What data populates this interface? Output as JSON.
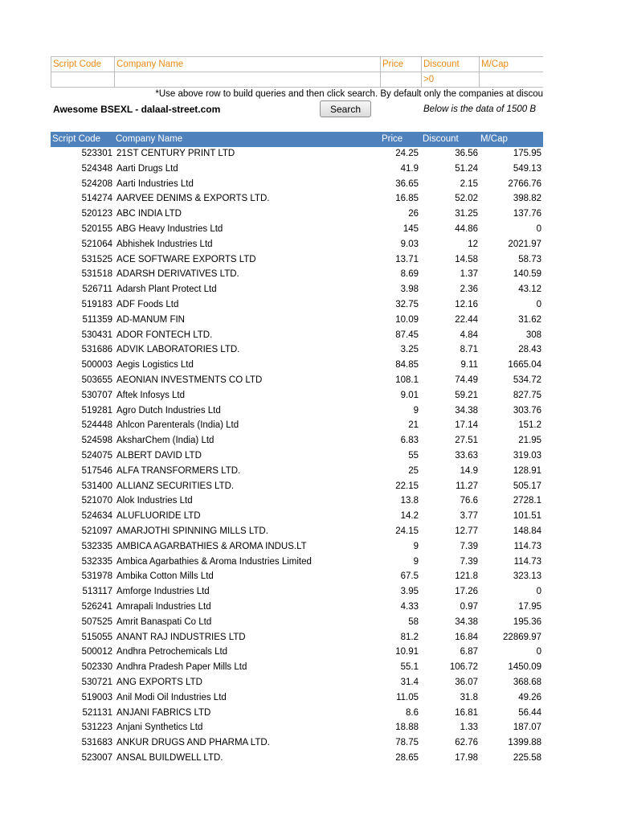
{
  "query": {
    "headers": [
      "Script Code",
      "Company Name",
      "Price",
      "Discount",
      "M/Cap"
    ],
    "discount_filter": ">0"
  },
  "note": "*Use above row to build queries and then click search. By default only the companies at discou",
  "brand": "Awesome BSEXL - dalaal-street.com",
  "search_button": "Search",
  "data_note": "Below is the data of 1500 B",
  "table": {
    "headers": [
      "Script Code",
      "Company Name",
      "Price",
      "Discount",
      "M/Cap"
    ],
    "rows": [
      [
        "523301",
        "21ST CENTURY PRINT LTD",
        "24.25",
        "36.56",
        "175.95"
      ],
      [
        "524348",
        "Aarti Drugs Ltd",
        "41.9",
        "51.24",
        "549.13"
      ],
      [
        "524208",
        "Aarti Industries Ltd",
        "36.65",
        "2.15",
        "2766.76"
      ],
      [
        "514274",
        "AARVEE DENIMS & EXPORTS LTD.",
        "16.85",
        "52.02",
        "398.82"
      ],
      [
        "520123",
        "ABC INDIA LTD",
        "26",
        "31.25",
        "137.76"
      ],
      [
        "520155",
        "ABG Heavy Industries Ltd",
        "145",
        "44.86",
        "0"
      ],
      [
        "521064",
        "Abhishek Industries Ltd",
        "9.03",
        "12",
        "2021.97"
      ],
      [
        "531525",
        "ACE SOFTWARE EXPORTS LTD",
        "13.71",
        "14.58",
        "58.73"
      ],
      [
        "531518",
        "ADARSH DERIVATIVES LTD.",
        "8.69",
        "1.37",
        "140.59"
      ],
      [
        "526711",
        "Adarsh Plant Protect Ltd",
        "3.98",
        "2.36",
        "43.12"
      ],
      [
        "519183",
        "ADF Foods Ltd",
        "32.75",
        "12.16",
        "0"
      ],
      [
        "511359",
        "AD-MANUM FIN",
        "10.09",
        "22.44",
        "31.62"
      ],
      [
        "530431",
        "ADOR FONTECH LTD.",
        "87.45",
        "4.84",
        "308"
      ],
      [
        "531686",
        "ADVIK LABORATORIES LTD.",
        "3.25",
        "8.71",
        "28.43"
      ],
      [
        "500003",
        "Aegis Logistics Ltd",
        "84.85",
        "9.11",
        "1665.04"
      ],
      [
        "503655",
        "AEONIAN INVESTMENTS CO LTD",
        "108.1",
        "74.49",
        "534.72"
      ],
      [
        "530707",
        "Aftek Infosys Ltd",
        "9.01",
        "59.21",
        "827.75"
      ],
      [
        "519281",
        "Agro Dutch Industries Ltd",
        "9",
        "34.38",
        "303.76"
      ],
      [
        "524448",
        "Ahlcon Parenterals (India) Ltd",
        "21",
        "17.14",
        "151.2"
      ],
      [
        "524598",
        "AksharChem (India) Ltd",
        "6.83",
        "27.51",
        "21.95"
      ],
      [
        "524075",
        "ALBERT DAVID LTD",
        "55",
        "33.63",
        "319.03"
      ],
      [
        "517546",
        "ALFA TRANSFORMERS LTD.",
        "25",
        "14.9",
        "128.91"
      ],
      [
        "531400",
        "ALLIANZ SECURITIES LTD.",
        "22.15",
        "11.27",
        "505.17"
      ],
      [
        "521070",
        "Alok Industries Ltd",
        "13.8",
        "76.6",
        "2728.1"
      ],
      [
        "524634",
        "ALUFLUORIDE LTD",
        "14.2",
        "3.77",
        "101.51"
      ],
      [
        "521097",
        "AMARJOTHI SPINNING MILLS LTD.",
        "24.15",
        "12.77",
        "148.84"
      ],
      [
        "532335",
        "AMBICA AGARBATHIES & AROMA INDUS.LT",
        "9",
        "7.39",
        "114.73"
      ],
      [
        "532335",
        "Ambica Agarbathies & Aroma Industries Limited",
        "9",
        "7.39",
        "114.73"
      ],
      [
        "531978",
        "Ambika Cotton Mills Ltd",
        "67.5",
        "121.8",
        "323.13"
      ],
      [
        "513117",
        "Amforge Industries Ltd",
        "3.95",
        "17.26",
        "0"
      ],
      [
        "526241",
        "Amrapali Industries Ltd",
        "4.33",
        "0.97",
        "17.95"
      ],
      [
        "507525",
        "Amrit Banaspati Co Ltd",
        "58",
        "34.38",
        "195.36"
      ],
      [
        "515055",
        "ANANT RAJ INDUSTRIES LTD",
        "81.2",
        "16.84",
        "22869.97"
      ],
      [
        "500012",
        "Andhra Petrochemicals Ltd",
        "10.91",
        "6.87",
        "0"
      ],
      [
        "502330",
        "Andhra Pradesh Paper Mills Ltd",
        "55.1",
        "106.72",
        "1450.09"
      ],
      [
        "530721",
        "ANG EXPORTS LTD",
        "31.4",
        "36.07",
        "368.68"
      ],
      [
        "519003",
        "Anil Modi Oil Industries Ltd",
        "11.05",
        "31.8",
        "49.26"
      ],
      [
        "521131",
        "ANJANI FABRICS LTD",
        "8.6",
        "16.81",
        "56.44"
      ],
      [
        "531223",
        "Anjani Synthetics Ltd",
        "18.88",
        "1.33",
        "187.07"
      ],
      [
        "531683",
        "ANKUR DRUGS AND PHARMA LTD.",
        "78.75",
        "62.76",
        "1399.88"
      ],
      [
        "523007",
        "ANSAL BUILDWELL LTD.",
        "28.65",
        "17.98",
        "225.58"
      ]
    ]
  }
}
